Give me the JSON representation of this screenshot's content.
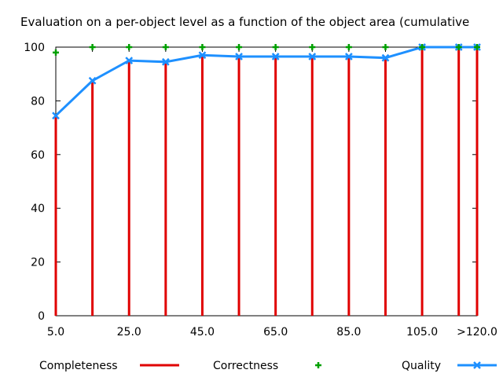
{
  "chart_data": {
    "type": "bar",
    "title": "Evaluation on a per-object level as a function of the object area (cumulative",
    "xlabel": "",
    "ylabel": "",
    "ylim": [
      0,
      100
    ],
    "yticks": [
      "0",
      "20",
      "40",
      "60",
      "80",
      "100"
    ],
    "xtick_labels": [
      "5.0",
      "25.0",
      "45.0",
      "65.0",
      "85.0",
      "105.0",
      ">120.0"
    ],
    "x": [
      5,
      15,
      25,
      35,
      45,
      55,
      65,
      75,
      85,
      95,
      105,
      115,
      120
    ],
    "xlim": [
      5,
      120
    ],
    "grid": false,
    "legend_position": "bottom",
    "series": [
      {
        "name": "Completeness",
        "style": "impulses",
        "color": "#e00000",
        "values": [
          74.5,
          87.5,
          95,
          94.5,
          97,
          96.5,
          96.5,
          96.5,
          96.5,
          96,
          100,
          100,
          100
        ]
      },
      {
        "name": "Correctness",
        "style": "points",
        "color": "#00a000",
        "values": [
          98,
          100,
          100,
          100,
          100,
          100,
          100,
          100,
          100,
          100,
          100,
          100,
          100
        ]
      },
      {
        "name": "Quality",
        "style": "linespoints",
        "color": "#1e90ff",
        "values": [
          74.5,
          87.5,
          95,
          94.5,
          97,
          96.5,
          96.5,
          96.5,
          96.5,
          96,
          100,
          100,
          100
        ]
      }
    ]
  }
}
